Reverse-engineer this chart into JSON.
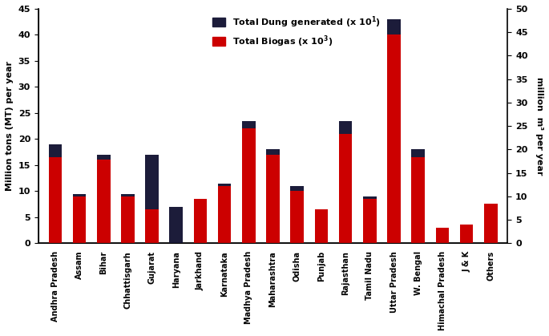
{
  "states": [
    "Andhra Pradesh",
    "Assam",
    "Bihar",
    "Chhattisgarh",
    "Gujarat",
    "Haryana",
    "Jarkhand",
    "Karnataka",
    "Madhya Pradesh",
    "Maharashtra",
    "Odisha",
    "Punjab",
    "Rajasthan",
    "Tamil Nadu",
    "Uttar Pradesh",
    "W. Bengal",
    "Himachal Pradesh",
    "J & K",
    "Others"
  ],
  "biogas_red": [
    16.5,
    9.0,
    16.0,
    9.0,
    6.5,
    0.0,
    8.5,
    11.0,
    22.0,
    17.0,
    10.0,
    6.5,
    21.0,
    8.5,
    40.0,
    16.5,
    3.0,
    3.5,
    7.5
  ],
  "dung_dark": [
    2.5,
    0.5,
    1.0,
    0.5,
    10.5,
    7.0,
    0.0,
    0.5,
    1.5,
    1.0,
    1.0,
    0.0,
    2.5,
    0.5,
    3.0,
    1.5,
    0.0,
    0.0,
    0.0
  ],
  "color_red": "#CC0000",
  "color_dark": "#1C1C3A",
  "ylabel_left": "Million tons (MT) per year",
  "ylabel_right": "million  m³ per year",
  "ylim_left": [
    0,
    45
  ],
  "ylim_right": [
    0,
    50
  ],
  "yticks_left": [
    0,
    5,
    10,
    15,
    20,
    25,
    30,
    35,
    40,
    45
  ],
  "yticks_right": [
    0,
    5,
    10,
    15,
    20,
    25,
    30,
    35,
    40,
    45,
    50
  ],
  "bg_color": "#ffffff",
  "bar_width": 0.55,
  "figsize": [
    6.85,
    4.19
  ],
  "dpi": 100
}
